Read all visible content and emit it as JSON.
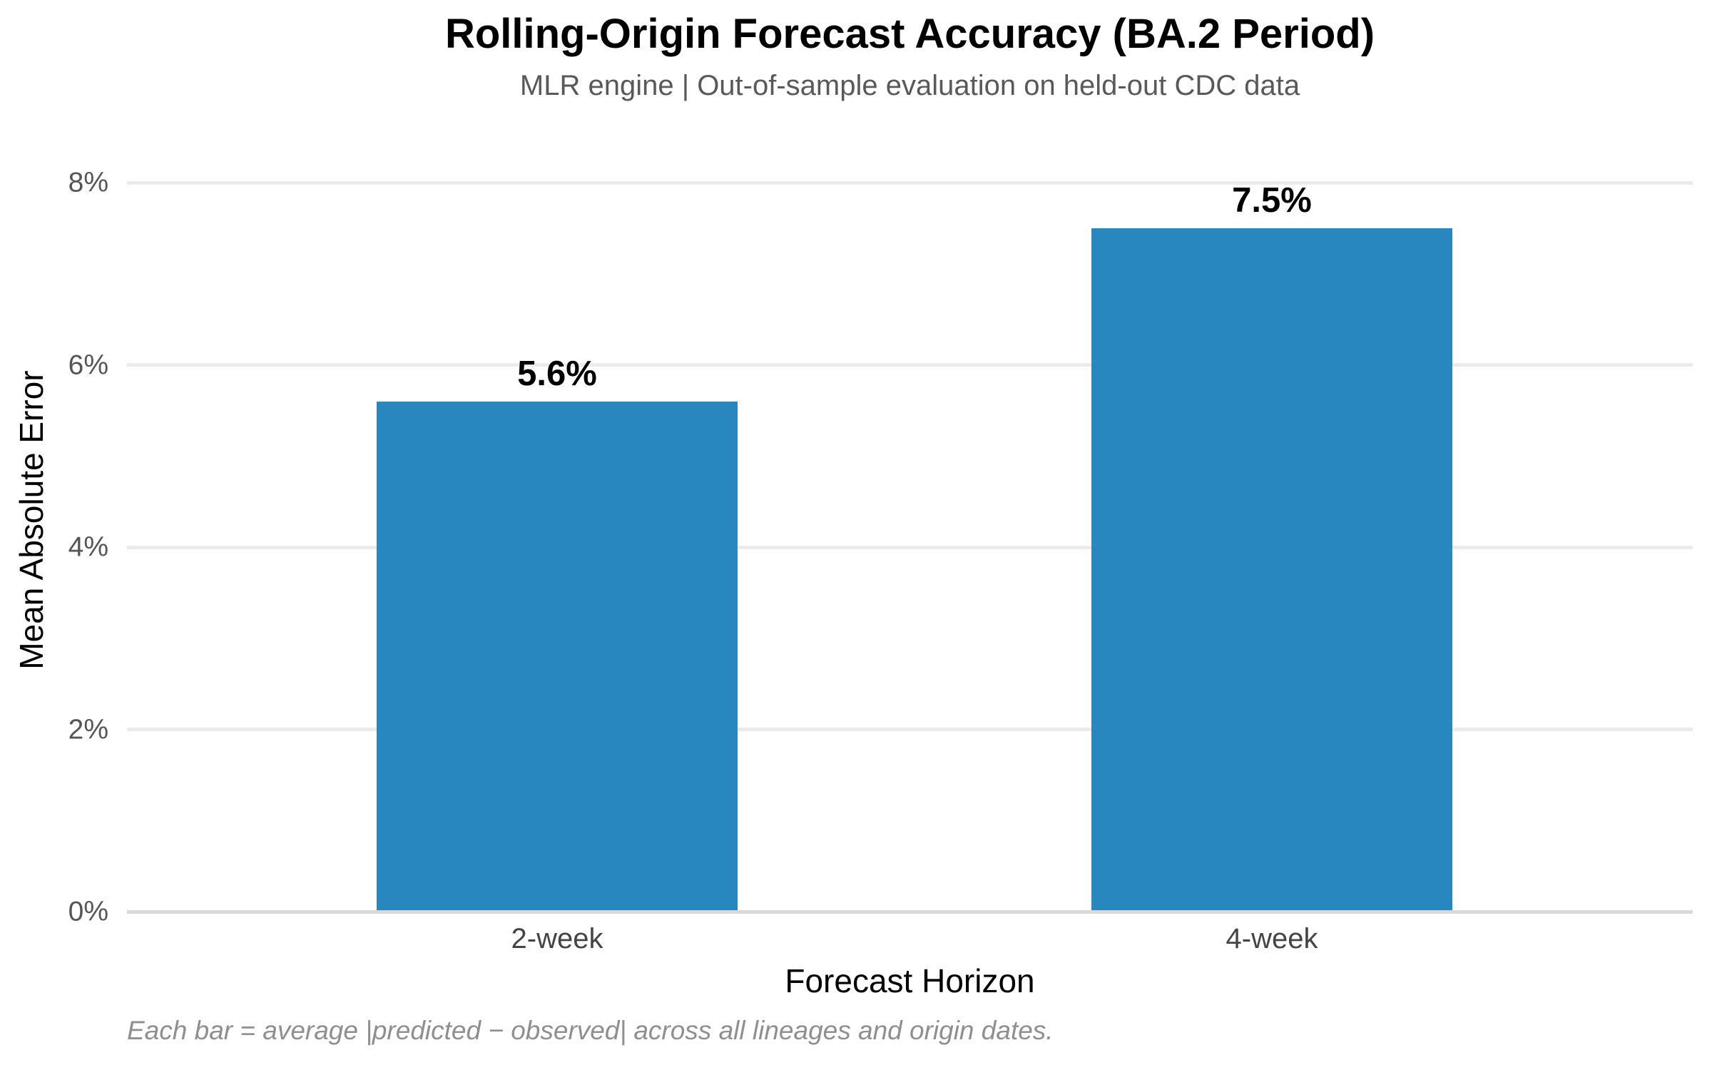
{
  "chart_data": {
    "type": "bar",
    "title": "Rolling-Origin Forecast Accuracy (BA.2 Period)",
    "subtitle": "MLR engine | Out-of-sample evaluation on held-out CDC data",
    "xlabel": "Forecast Horizon",
    "ylabel": "Mean Absolute Error",
    "categories": [
      "2-week",
      "4-week"
    ],
    "values": [
      5.6,
      7.5
    ],
    "value_labels": [
      "5.6%",
      "7.5%"
    ],
    "ytick_values": [
      0,
      2,
      4,
      6,
      8
    ],
    "ytick_labels": [
      "0%",
      "2%",
      "4%",
      "6%",
      "8%"
    ],
    "ylim": [
      0,
      8.7
    ],
    "grid": true,
    "legend_position": "none",
    "bar_color": "#2787be",
    "caption": "Each bar = average |predicted − observed| across all lineages and origin dates."
  }
}
